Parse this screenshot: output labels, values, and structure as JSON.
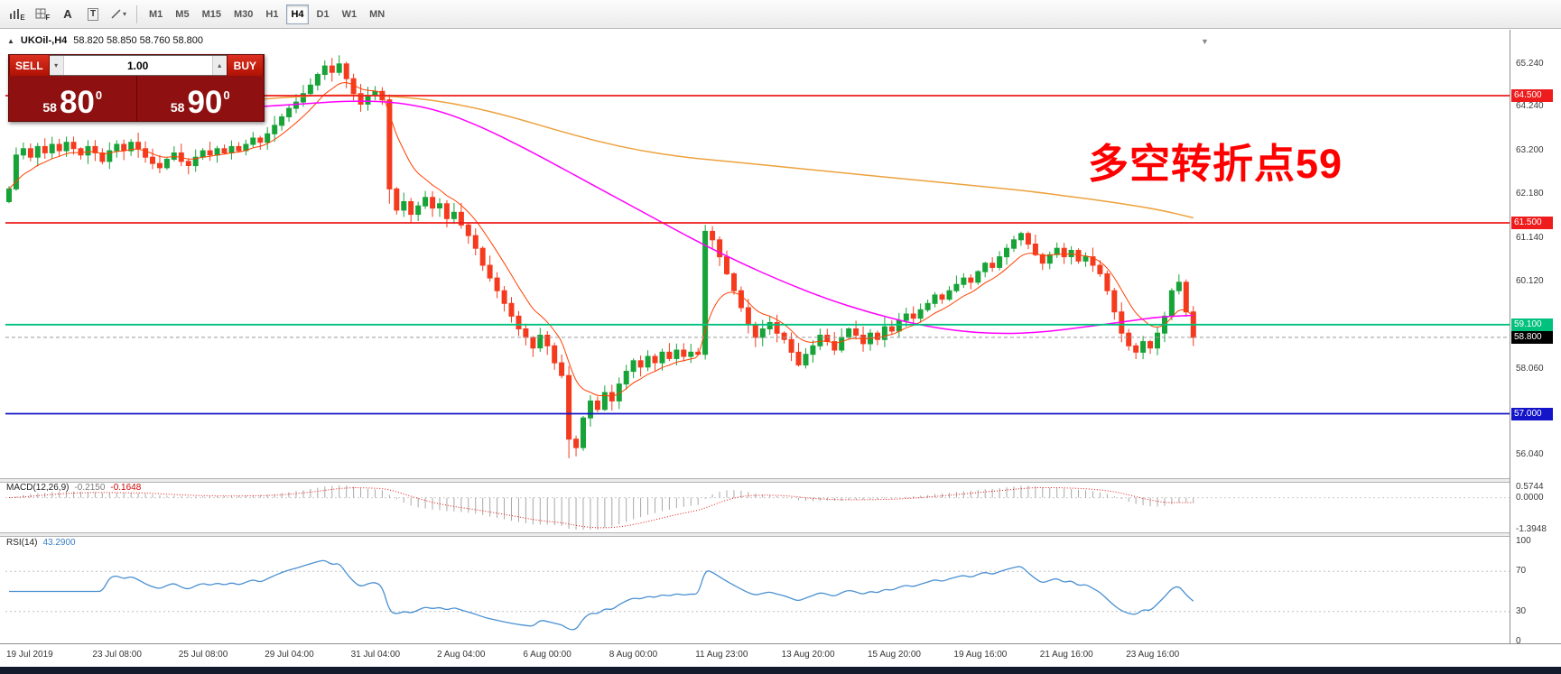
{
  "toolbar": {
    "tools": [
      {
        "name": "bar-chart-tool",
        "label": "E"
      },
      {
        "name": "indicators-tool",
        "label": "F"
      },
      {
        "name": "cursor-tool",
        "label": "A"
      },
      {
        "name": "text-tool",
        "label": "T"
      },
      {
        "name": "line-studies-tool",
        "label": "▾"
      }
    ],
    "timeframes": [
      {
        "label": "M1"
      },
      {
        "label": "M5"
      },
      {
        "label": "M15"
      },
      {
        "label": "M30"
      },
      {
        "label": "H1"
      },
      {
        "label": "H4"
      },
      {
        "label": "D1"
      },
      {
        "label": "W1"
      },
      {
        "label": "MN"
      }
    ],
    "active_timeframe": "H4"
  },
  "chart": {
    "collapse_arrow": "▲",
    "symbol_title": "UKOil-,H4",
    "ohlc": "58.820 58.850 58.760 58.800",
    "shift_marker": "▼",
    "annotation": {
      "text": "多空转折点59",
      "color": "#ff0000"
    },
    "trade_panel": {
      "sell_label": "SELL",
      "buy_label": "BUY",
      "volume": "1.00",
      "spin_down": "▾",
      "spin_up": "▴",
      "sell_price": {
        "small": "58",
        "big": "80",
        "sup": "0"
      },
      "buy_price": {
        "small": "58",
        "big": "90",
        "sup": "0"
      }
    },
    "levels": [
      {
        "label": "64.500",
        "value": 64.5,
        "color": "#ee1c1c"
      },
      {
        "label": "61.500",
        "value": 61.5,
        "color": "#ee1c1c"
      },
      {
        "label": "59.100",
        "value": 59.1,
        "color": "#00c17e"
      },
      {
        "label": "57.000",
        "value": 57.0,
        "color": "#1414c8"
      }
    ],
    "current_price": {
      "label": "58.800",
      "value": 58.8,
      "color": "#000000"
    },
    "price_gridlines": [
      {
        "label": "65.240",
        "value": 65.24
      },
      {
        "label": "64.240",
        "value": 64.24
      },
      {
        "label": "63.200",
        "value": 63.2
      },
      {
        "label": "62.180",
        "value": 62.18
      },
      {
        "label": "61.140",
        "value": 61.14
      },
      {
        "label": "60.120",
        "value": 60.12
      },
      {
        "label": "58.060",
        "value": 58.06
      },
      {
        "label": "56.040",
        "value": 56.04
      }
    ]
  },
  "chart_data": {
    "type": "candlestick",
    "symbol": "UKOil-",
    "timeframe": "H4",
    "first_open": 62.0,
    "up_color": "#17a338",
    "down_color": "#f43b1e",
    "closes": [
      62.3,
      63.1,
      63.25,
      63.05,
      63.3,
      63.15,
      63.35,
      63.2,
      63.4,
      63.25,
      63.1,
      63.3,
      63.15,
      62.95,
      63.2,
      63.35,
      63.2,
      63.4,
      63.25,
      63.05,
      62.9,
      62.8,
      63.0,
      63.15,
      62.95,
      62.85,
      63.05,
      63.2,
      63.1,
      63.25,
      63.15,
      63.3,
      63.2,
      63.35,
      63.5,
      63.4,
      63.6,
      63.8,
      64.0,
      64.2,
      64.35,
      64.55,
      64.75,
      65.0,
      65.2,
      65.05,
      65.25,
      64.9,
      64.55,
      64.3,
      64.5,
      64.6,
      64.4,
      62.3,
      61.8,
      62.0,
      61.7,
      61.9,
      62.1,
      61.85,
      61.95,
      61.6,
      61.75,
      61.45,
      61.2,
      60.9,
      60.5,
      60.2,
      59.9,
      59.6,
      59.3,
      59.0,
      58.8,
      58.55,
      58.85,
      58.6,
      58.2,
      57.9,
      56.4,
      56.2,
      56.9,
      57.3,
      57.1,
      57.5,
      57.3,
      57.7,
      58.0,
      58.25,
      58.1,
      58.35,
      58.2,
      58.45,
      58.3,
      58.5,
      58.35,
      58.45,
      58.4,
      61.3,
      61.1,
      60.7,
      60.3,
      59.9,
      59.5,
      59.1,
      58.8,
      59.0,
      59.15,
      58.9,
      58.75,
      58.45,
      58.15,
      58.4,
      58.6,
      58.85,
      58.7,
      58.5,
      58.8,
      59.0,
      58.85,
      58.65,
      58.9,
      58.75,
      59.05,
      58.95,
      59.2,
      59.35,
      59.25,
      59.45,
      59.6,
      59.8,
      59.7,
      59.9,
      60.05,
      60.2,
      60.1,
      60.35,
      60.55,
      60.45,
      60.7,
      60.9,
      61.1,
      61.25,
      61.0,
      60.75,
      60.55,
      60.75,
      60.9,
      60.7,
      60.85,
      60.6,
      60.7,
      60.5,
      60.3,
      59.9,
      59.4,
      58.9,
      58.6,
      58.45,
      58.7,
      58.55,
      58.9,
      59.3,
      59.9,
      60.1,
      59.4,
      58.8
    ],
    "time_labels": [
      {
        "i": 0,
        "label": "19 Jul 2019"
      },
      {
        "i": 12,
        "label": "23 Jul 08:00"
      },
      {
        "i": 24,
        "label": "25 Jul 08:00"
      },
      {
        "i": 36,
        "label": "29 Jul 04:00"
      },
      {
        "i": 48,
        "label": "31 Jul 04:00"
      },
      {
        "i": 60,
        "label": "2 Aug 04:00"
      },
      {
        "i": 72,
        "label": "6 Aug 00:00"
      },
      {
        "i": 84,
        "label": "8 Aug 00:00"
      },
      {
        "i": 96,
        "label": "11 Aug 23:00"
      },
      {
        "i": 108,
        "label": "13 Aug 20:00"
      },
      {
        "i": 120,
        "label": "15 Aug 20:00"
      },
      {
        "i": 132,
        "label": "19 Aug 16:00"
      },
      {
        "i": 144,
        "label": "21 Aug 16:00"
      },
      {
        "i": 156,
        "label": "23 Aug 16:00"
      }
    ],
    "ma_orange": {
      "color": "#eda13c",
      "points": [
        [
          34,
          64.4
        ],
        [
          40,
          64.48
        ],
        [
          46,
          64.52
        ],
        [
          52,
          64.5
        ],
        [
          58,
          64.42
        ],
        [
          64,
          64.25
        ],
        [
          70,
          64.0
        ],
        [
          76,
          63.7
        ],
        [
          82,
          63.42
        ],
        [
          88,
          63.2
        ],
        [
          94,
          63.05
        ],
        [
          100,
          62.95
        ],
        [
          106,
          62.85
        ],
        [
          112,
          62.75
        ],
        [
          118,
          62.65
        ],
        [
          124,
          62.55
        ],
        [
          130,
          62.45
        ],
        [
          136,
          62.35
        ],
        [
          142,
          62.25
        ],
        [
          148,
          62.12
        ],
        [
          154,
          61.98
        ],
        [
          160,
          61.82
        ],
        [
          165,
          61.62
        ]
      ]
    },
    "ma_magenta": {
      "color": "#ff00ff",
      "points": [
        [
          30,
          64.2
        ],
        [
          36,
          64.25
        ],
        [
          42,
          64.32
        ],
        [
          48,
          64.38
        ],
        [
          54,
          64.35
        ],
        [
          60,
          64.15
        ],
        [
          66,
          63.75
        ],
        [
          72,
          63.25
        ],
        [
          78,
          62.7
        ],
        [
          84,
          62.15
        ],
        [
          90,
          61.6
        ],
        [
          96,
          61.05
        ],
        [
          102,
          60.55
        ],
        [
          108,
          60.1
        ],
        [
          114,
          59.7
        ],
        [
          120,
          59.38
        ],
        [
          126,
          59.12
        ],
        [
          132,
          58.95
        ],
        [
          138,
          58.88
        ],
        [
          144,
          58.92
        ],
        [
          150,
          59.05
        ],
        [
          156,
          59.18
        ],
        [
          160,
          59.28
        ],
        [
          165,
          59.32
        ]
      ]
    },
    "ma_fast": {
      "color": "#ff4000",
      "period": 8
    }
  },
  "macd_panel": {
    "title": "MACD(12,26,9)",
    "value_main": "-0.2150",
    "value_signal": "-0.1648",
    "params": {
      "fast": 12,
      "slow": 26,
      "signal": 9
    },
    "histogram_color": "#a8a8a8",
    "signal_color": "#e01616",
    "scale": [
      {
        "label": "0.5744",
        "value": 0.5744
      },
      {
        "label": "0.0000",
        "value": 0.0
      },
      {
        "label": "-1.3948",
        "value": -1.3948
      }
    ]
  },
  "rsi_panel": {
    "title": "RSI(14)",
    "value": "43.2900",
    "period": 14,
    "line_color": "#4a90d2",
    "level_lines": [
      70,
      30
    ],
    "scale": [
      {
        "label": "100",
        "value": 100
      },
      {
        "label": "70",
        "value": 70
      },
      {
        "label": "30",
        "value": 30
      },
      {
        "label": "0",
        "value": 0
      }
    ]
  }
}
